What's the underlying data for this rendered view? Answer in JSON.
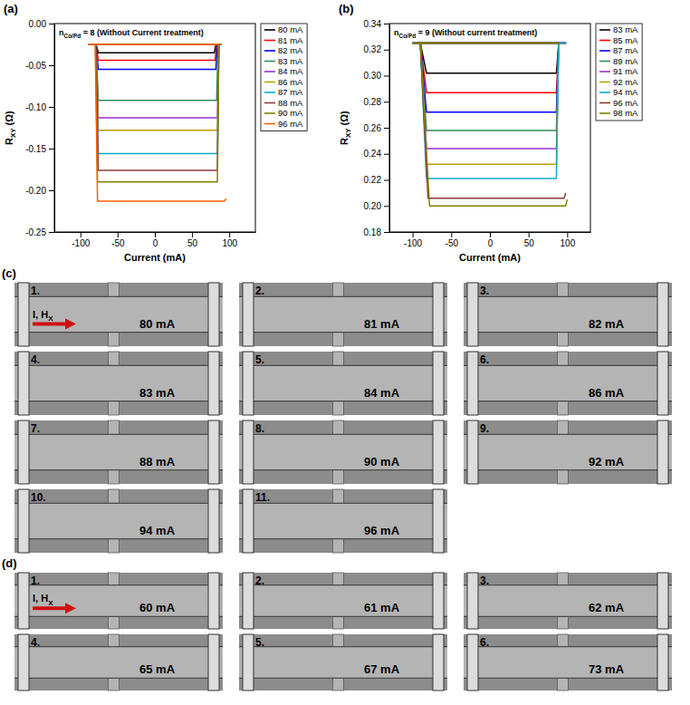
{
  "chart_data": [
    {
      "type": "line",
      "panel": "(a)",
      "title": {
        "main": "n",
        "subscript": "Co/Pd",
        "rest": " = 8 (Without Current treatment)"
      },
      "x_label": "Current (mA)",
      "y_label": {
        "main": "R",
        "subscript": "XY",
        "rest": " (Ω)"
      },
      "xlim": [
        -135,
        135
      ],
      "xticks": [
        -100,
        -50,
        0,
        50,
        100
      ],
      "ylim": [
        -0.25,
        0
      ],
      "yticks": [
        -0.25,
        {
          "value": -0.2,
          "label": "-0.20"
        },
        -0.15,
        {
          "value": -0.1,
          "label": "-0.10"
        },
        -0.05,
        {
          "value": 0,
          "label": "0.00"
        }
      ],
      "legend": "right",
      "series": [
        {
          "name": "80 mA",
          "color": "#000000",
          "x": [
            -88,
            -79,
            -76,
            0,
            80,
            82,
            86,
            0,
            -88
          ],
          "values": [
            -0.025,
            -0.025,
            -0.035,
            -0.035,
            -0.035,
            -0.025,
            -0.025,
            -0.025,
            -0.025
          ]
        },
        {
          "name": "81 mA",
          "color": "#ff0000",
          "x": [
            -88,
            -79,
            -76,
            0,
            81,
            83,
            86,
            0,
            -88
          ],
          "values": [
            -0.025,
            -0.025,
            -0.044,
            -0.044,
            -0.044,
            -0.025,
            -0.025,
            -0.025,
            -0.025
          ]
        },
        {
          "name": "82 mA",
          "color": "#0000ff",
          "x": [
            -88,
            -79,
            -76,
            0,
            82,
            84,
            86,
            0,
            -88
          ],
          "values": [
            -0.025,
            -0.025,
            -0.055,
            -0.055,
            -0.055,
            -0.025,
            -0.025,
            -0.025,
            -0.025
          ]
        },
        {
          "name": "83 mA",
          "color": "#2e8b57",
          "x": [
            -88,
            -79,
            -76,
            0,
            83,
            85,
            87,
            0,
            -88
          ],
          "values": [
            -0.025,
            -0.025,
            -0.092,
            -0.092,
            -0.092,
            -0.025,
            -0.025,
            -0.025,
            -0.025
          ]
        },
        {
          "name": "84 mA",
          "color": "#9932cc",
          "x": [
            -88,
            -79,
            -76,
            0,
            84,
            86,
            88,
            0,
            -88
          ],
          "values": [
            -0.025,
            -0.025,
            -0.113,
            -0.113,
            -0.113,
            -0.025,
            -0.025,
            -0.025,
            -0.025
          ]
        },
        {
          "name": "86 mA",
          "color": "#b8a000",
          "x": [
            -88,
            -79,
            -76,
            0,
            84,
            86,
            88,
            0,
            -88
          ],
          "values": [
            -0.025,
            -0.025,
            -0.128,
            -0.128,
            -0.128,
            -0.025,
            -0.025,
            -0.025,
            -0.025
          ]
        },
        {
          "name": "87 mA",
          "color": "#10a8d0",
          "x": [
            -88,
            -79,
            -76,
            0,
            84,
            86,
            88,
            0,
            -88
          ],
          "values": [
            -0.025,
            -0.025,
            -0.156,
            -0.156,
            -0.156,
            -0.025,
            -0.025,
            -0.025,
            -0.025
          ]
        },
        {
          "name": "88 mA",
          "color": "#8b3a3a",
          "x": [
            -88,
            -79,
            -76,
            0,
            84,
            86,
            88,
            0,
            -88
          ],
          "values": [
            -0.025,
            -0.025,
            -0.176,
            -0.176,
            -0.176,
            -0.025,
            -0.025,
            -0.025,
            -0.025
          ]
        },
        {
          "name": "90 mA",
          "color": "#808000",
          "x": [
            -90,
            -80,
            -77,
            0,
            84,
            86,
            90,
            0,
            -90
          ],
          "values": [
            -0.025,
            -0.025,
            -0.19,
            -0.19,
            -0.19,
            -0.025,
            -0.025,
            -0.025,
            -0.025
          ]
        },
        {
          "name": "96 mA",
          "color": "#ff6000",
          "x": [
            -90,
            -80,
            -77,
            0,
            84,
            93,
            96,
            96,
            86,
            0,
            -90
          ],
          "values": [
            -0.025,
            -0.025,
            -0.213,
            -0.213,
            -0.213,
            -0.213,
            -0.21,
            null,
            -0.025,
            -0.025,
            -0.025
          ]
        }
      ]
    },
    {
      "type": "line",
      "panel": "(b)",
      "title": {
        "main": "n",
        "subscript": "Co/Pd",
        "rest": " = 9 (Without current treatment)"
      },
      "x_label": "Current (mA)",
      "y_label": {
        "main": "R",
        "subscript": "XY",
        "rest": " (Ω)"
      },
      "xlim": [
        -130,
        130
      ],
      "xticks": [
        -100,
        -50,
        0,
        50,
        100
      ],
      "ylim": [
        0.18,
        0.34
      ],
      "yticks": [
        0.18,
        {
          "value": 0.2,
          "label": "0.20"
        },
        0.22,
        0.24,
        0.26,
        0.28,
        {
          "value": 0.3,
          "label": "0.30"
        },
        0.32,
        0.34
      ],
      "legend": "right",
      "series": [
        {
          "name": "83 mA",
          "color": "#000000",
          "x": [
            -100,
            -90,
            -82,
            0,
            86,
            89,
            98,
            0,
            -100
          ],
          "values": [
            0.325,
            0.325,
            0.302,
            0.302,
            0.302,
            0.325,
            0.325,
            0.325,
            0.325
          ]
        },
        {
          "name": "85 mA",
          "color": "#ff0000",
          "x": [
            -100,
            -90,
            -82,
            0,
            86,
            89,
            98,
            0,
            -100
          ],
          "values": [
            0.325,
            0.325,
            0.287,
            0.287,
            0.287,
            0.325,
            0.325,
            0.325,
            0.325
          ]
        },
        {
          "name": "87 mA",
          "color": "#0000ff",
          "x": [
            -100,
            -90,
            -82,
            0,
            86,
            89,
            98,
            0,
            -100
          ],
          "values": [
            0.325,
            0.325,
            0.272,
            0.272,
            0.272,
            0.325,
            0.325,
            0.325,
            0.325
          ]
        },
        {
          "name": "89 mA",
          "color": "#2e8b57",
          "x": [
            -100,
            -90,
            -82,
            0,
            86,
            89,
            98,
            0,
            -100
          ],
          "values": [
            0.325,
            0.325,
            0.258,
            0.258,
            0.258,
            0.325,
            0.325,
            0.325,
            0.325
          ]
        },
        {
          "name": "91 mA",
          "color": "#9932cc",
          "x": [
            -100,
            -90,
            -82,
            0,
            86,
            89,
            98,
            0,
            -100
          ],
          "values": [
            0.325,
            0.325,
            0.244,
            0.244,
            0.244,
            0.325,
            0.325,
            0.325,
            0.325
          ]
        },
        {
          "name": "92 mA",
          "color": "#b8a000",
          "x": [
            -100,
            -90,
            -82,
            0,
            86,
            89,
            98,
            0,
            -100
          ],
          "values": [
            0.325,
            0.325,
            0.232,
            0.232,
            0.232,
            0.325,
            0.325,
            0.325,
            0.325
          ]
        },
        {
          "name": "94 mA",
          "color": "#10a8d0",
          "x": [
            -100,
            -90,
            -82,
            0,
            86,
            89,
            98,
            0,
            -100
          ],
          "values": [
            0.325,
            0.325,
            0.221,
            0.221,
            0.221,
            0.325,
            0.325,
            0.325,
            0.325
          ]
        },
        {
          "name": "96 mA",
          "color": "#8b3a3a",
          "x": [
            -100,
            -90,
            -80,
            0,
            88,
            96,
            98,
            98,
            90,
            0,
            -100
          ],
          "values": [
            0.325,
            0.325,
            0.206,
            0.206,
            0.206,
            0.206,
            0.21,
            null,
            0.325,
            0.325,
            0.325
          ]
        },
        {
          "name": "98 mA",
          "color": "#808000",
          "x": [
            -100,
            -90,
            -78,
            0,
            88,
            98,
            100,
            100,
            90,
            0,
            -100
          ],
          "values": [
            0.325,
            0.325,
            0.2,
            0.2,
            0.2,
            0.2,
            0.205,
            null,
            0.325,
            0.325,
            0.325
          ]
        }
      ]
    }
  ],
  "image_panels": [
    {
      "panel": "(c)",
      "arrow_label": {
        "main": "I, H",
        "subscript": "X"
      },
      "frames": [
        {
          "index": "1.",
          "label": "80 mA"
        },
        {
          "index": "2.",
          "label": "81 mA"
        },
        {
          "index": "3.",
          "label": "82 mA"
        },
        {
          "index": "4.",
          "label": "83 mA"
        },
        {
          "index": "5.",
          "label": "84 mA"
        },
        {
          "index": "6.",
          "label": "86 mA"
        },
        {
          "index": "7.",
          "label": "88 mA"
        },
        {
          "index": "8.",
          "label": "90 mA"
        },
        {
          "index": "9.",
          "label": "92 mA"
        },
        {
          "index": "10.",
          "label": "94 mA"
        },
        {
          "index": "11.",
          "label": "96 mA"
        }
      ]
    },
    {
      "panel": "(d)",
      "arrow_label": {
        "main": "I, H",
        "subscript": "X"
      },
      "frames": [
        {
          "index": "1.",
          "label": "60 mA"
        },
        {
          "index": "2.",
          "label": "61 mA"
        },
        {
          "index": "3.",
          "label": "62 mA"
        },
        {
          "index": "4.",
          "label": "65 mA"
        },
        {
          "index": "5.",
          "label": "67 mA"
        },
        {
          "index": "6.",
          "label": "73 mA"
        }
      ]
    }
  ]
}
